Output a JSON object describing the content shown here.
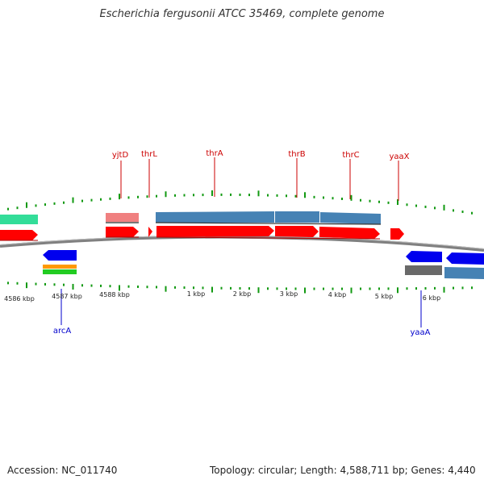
{
  "title": "Escherichia fergusonii ATCC 35469, complete genome",
  "footer": {
    "accession": "Accession: NC_011740",
    "summary": "Topology: circular; Length: 4,588,711 bp; Genes: 4,440"
  },
  "colors": {
    "forward_cds": "#ff0000",
    "forward_gene": "#4682b4",
    "forward_pseudo": "#f08080",
    "reverse_cds": "#0000ee",
    "reverse_gene": "#4682b4",
    "reverse_pseudo": "#696969",
    "misc_green": "#22cc22",
    "misc_orange": "#ff9900",
    "misc_teal": "#33dd99",
    "tick": "#119911",
    "backbone": "#808080",
    "label_forward": "#cc0000",
    "label_reverse": "#0000cc"
  },
  "scale_labels": [
    "4586 kbp",
    "4587 kbp",
    "4588 kbp",
    "1 kbp",
    "2 kbp",
    "3 kbp",
    "4 kbp",
    "5 kbp",
    "6 kbp"
  ],
  "gene_labels": {
    "forward": [
      "yjtD",
      "thrL",
      "thrA",
      "thrB",
      "thrC",
      "yaaX"
    ],
    "reverse": [
      "arcA",
      "yaaA"
    ]
  }
}
